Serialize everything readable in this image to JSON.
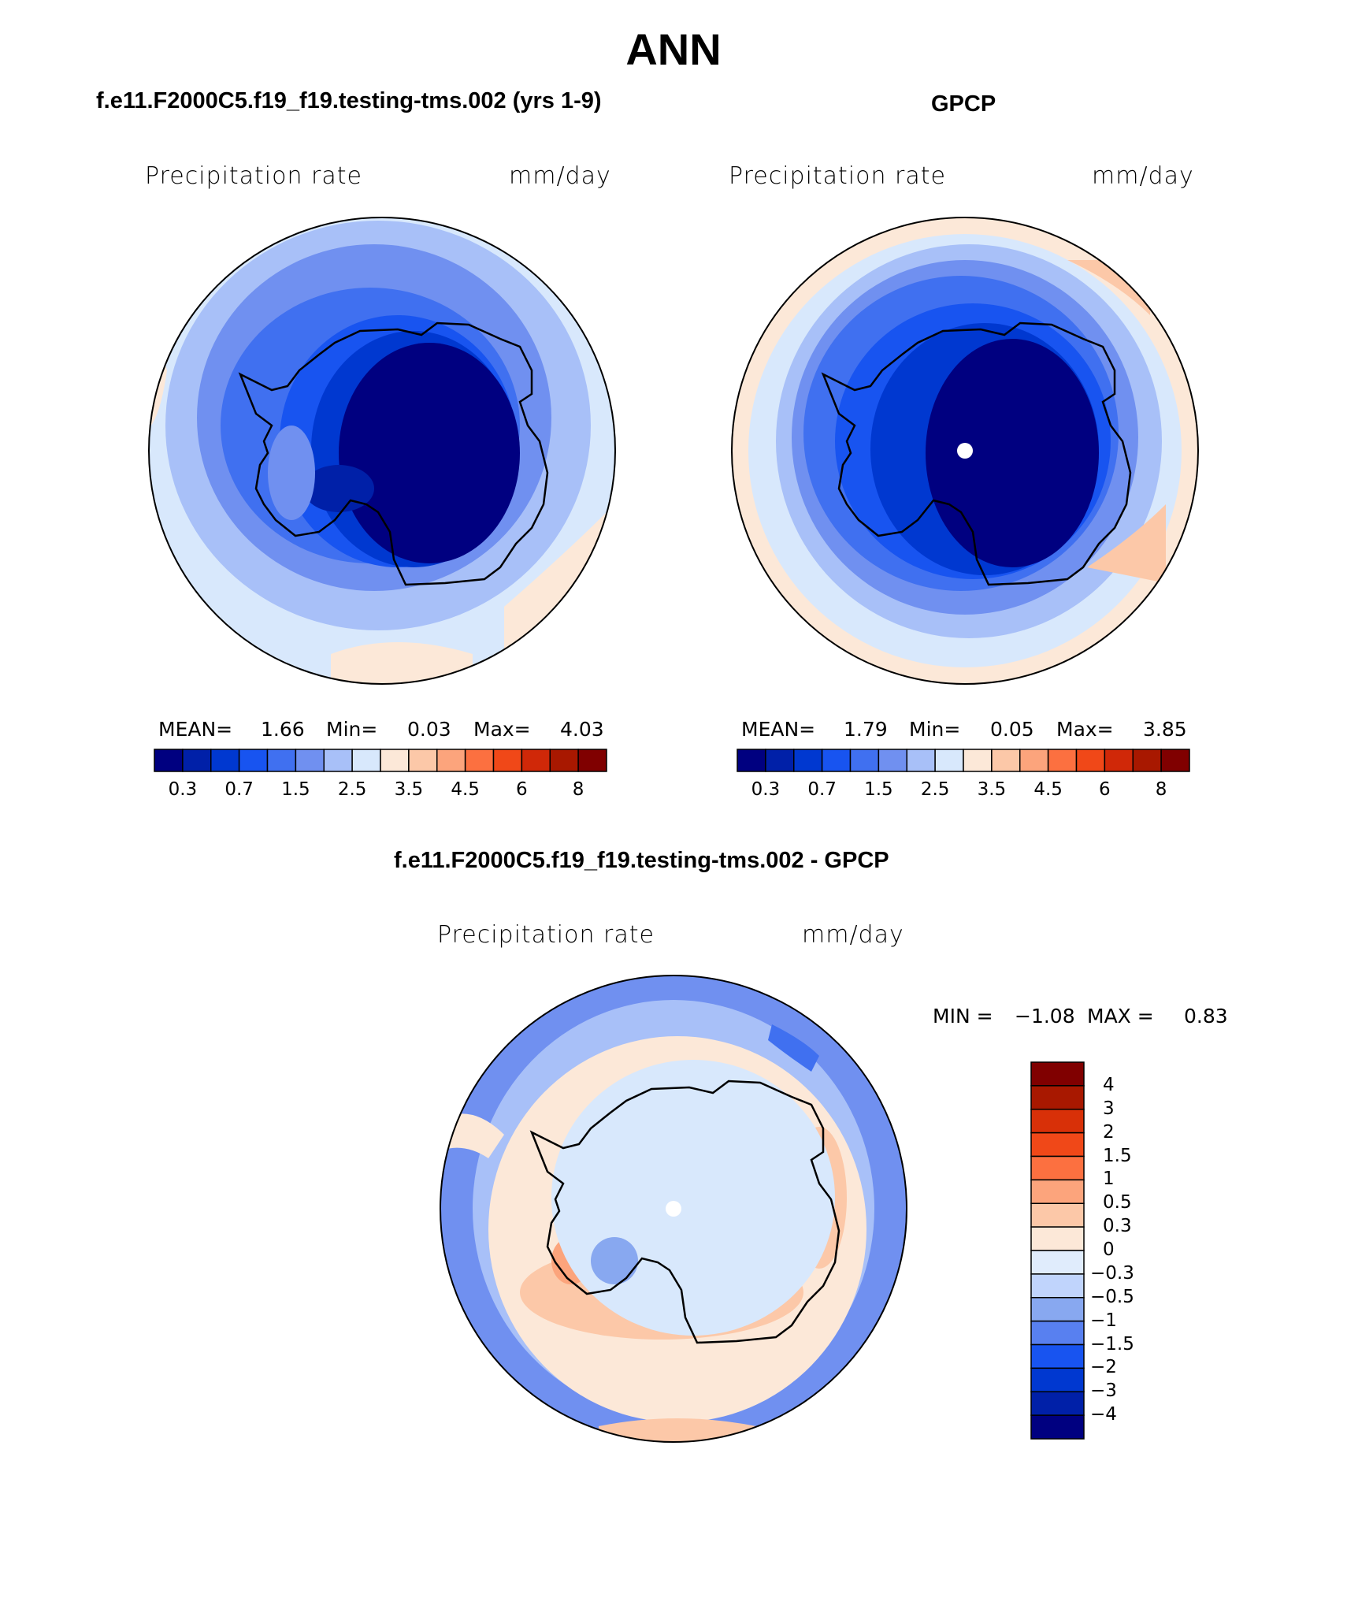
{
  "figure": {
    "title": "ANN"
  },
  "panels": {
    "model": {
      "title": "f.e11.F2000C5.f19_f19.testing-tms.002 (yrs 1-9)",
      "variable": "Precipitation rate",
      "units": "mm/day",
      "mean_label": "MEAN=",
      "mean": "1.66",
      "min_label": "Min=",
      "min": "0.03",
      "max_label": "Max=",
      "max": "4.03"
    },
    "obs": {
      "title": "GPCP",
      "variable": "Precipitation rate",
      "units": "mm/day",
      "mean_label": "MEAN=",
      "mean": "1.79",
      "min_label": "Min=",
      "min": "0.05",
      "max_label": "Max=",
      "max": "3.85"
    },
    "diff": {
      "title": "f.e11.F2000C5.f19_f19.testing-tms.002 - GPCP",
      "variable": "Precipitation rate",
      "units": "mm/day",
      "min_label": "MIN =",
      "min": "−1.08",
      "max_label": "MAX =",
      "max": "0.83"
    }
  },
  "colorbar_abs": {
    "colors": [
      "#000080",
      "#0020a8",
      "#0038d0",
      "#1854f0",
      "#4070f0",
      "#7090f0",
      "#a8c0f8",
      "#d8e8fc",
      "#fce8d8",
      "#fcc8a8",
      "#fca47c",
      "#fc7040",
      "#f04818",
      "#d02808",
      "#a81800",
      "#800000"
    ],
    "tick_labels": [
      "0.3",
      "0.7",
      "1.5",
      "2.5",
      "3.5",
      "4.5",
      "6",
      "8"
    ]
  },
  "colorbar_diff": {
    "colors_top_to_bottom": [
      "#800000",
      "#a81800",
      "#d83008",
      "#f04818",
      "#fc7040",
      "#fca47c",
      "#fcc8a8",
      "#fce8d8",
      "#e0ecfc",
      "#c0d4fc",
      "#88a8f0",
      "#5880f0",
      "#1854f0",
      "#0038d0",
      "#0020a8",
      "#000080"
    ],
    "tick_labels_top_to_bottom": [
      "4",
      "3",
      "2",
      "1.5",
      "1",
      "0.5",
      "0.3",
      "0",
      "−0.3",
      "−0.5",
      "−1",
      "−1.5",
      "−2",
      "−3",
      "−4"
    ]
  }
}
